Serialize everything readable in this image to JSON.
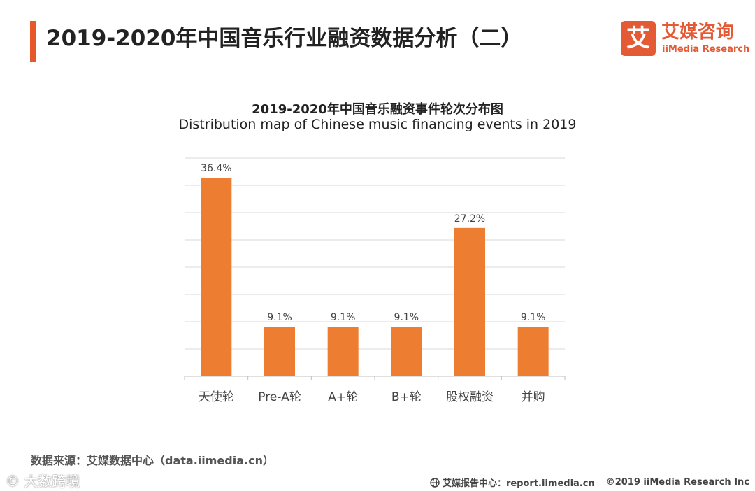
{
  "header": {
    "title": "2019-2020年中国音乐行业融资数据分析（二）",
    "logo_mark": "艾",
    "logo_cn": "艾媒咨询",
    "logo_en": "iiMedia Research"
  },
  "chart_data": {
    "type": "bar",
    "title": "2019-2020年中国音乐融资事件轮次分布图",
    "subtitle": "Distribution map of Chinese music financing events in 2019",
    "categories": [
      "天使轮",
      "Pre-A轮",
      "A+轮",
      "B+轮",
      "股权融资",
      "并购"
    ],
    "values": [
      36.4,
      9.1,
      9.1,
      9.1,
      27.2,
      9.1
    ],
    "value_labels": [
      "36.4%",
      "9.1%",
      "9.1%",
      "9.1%",
      "27.2%",
      "9.1%"
    ],
    "unit": "%",
    "ylim": [
      0,
      40
    ],
    "gridlines": 8,
    "bar_color": "#ed7d31",
    "xlabel": "",
    "ylabel": ""
  },
  "footer": {
    "source": "数据来源：艾媒数据中心（data.iimedia.cn）",
    "watermark": "© 大数跨境",
    "report_center": "艾媒报告中心：report.iimedia.cn",
    "copyright": "©2019  iiMedia Research  Inc"
  }
}
